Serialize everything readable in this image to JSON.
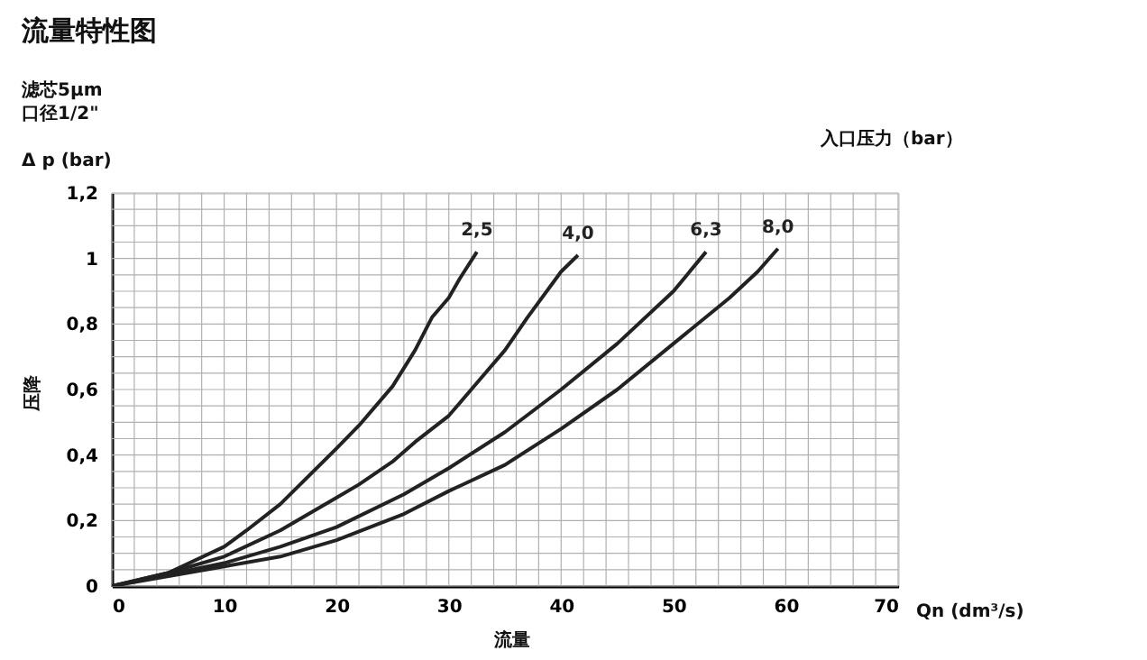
{
  "chart_data": {
    "type": "line",
    "title": "流量特性图",
    "subtitle": "滤芯5μm",
    "xlabel": "Qn (dm³/s)",
    "ylabel": "Δ p (bar)",
    "legend_title": "入口压力（bar）",
    "annotations": [
      "口径1/2\"",
      "压降",
      "流量"
    ],
    "xlim": [
      0,
      70
    ],
    "ylim": [
      0,
      1.2
    ],
    "xticks": [
      0,
      {
        "value": 2,
        "label": null
      },
      {
        "value": 4,
        "label": null
      },
      {
        "value": 6,
        "label": null
      },
      {
        "value": 8,
        "label": null
      },
      10,
      {
        "value": 12,
        "label": null
      },
      {
        "value": 14,
        "label": null
      },
      {
        "value": 16,
        "label": null
      },
      {
        "value": 18,
        "label": null
      },
      20,
      {
        "value": 22,
        "label": null
      },
      {
        "value": 24,
        "label": null
      },
      {
        "value": 26,
        "label": null
      },
      {
        "value": 28,
        "label": null
      },
      30,
      {
        "value": 32,
        "label": null
      },
      {
        "value": 34,
        "label": null
      },
      {
        "value": 36,
        "label": null
      },
      {
        "value": 38,
        "label": null
      },
      40,
      {
        "value": 42,
        "label": null
      },
      {
        "value": 44,
        "label": null
      },
      {
        "value": 46,
        "label": null
      },
      {
        "value": 48,
        "label": null
      },
      50,
      {
        "value": 52,
        "label": null
      },
      {
        "value": 54,
        "label": null
      },
      {
        "value": 56,
        "label": null
      },
      {
        "value": 58,
        "label": null
      },
      60,
      {
        "value": 62,
        "label": null
      },
      {
        "value": 64,
        "label": null
      },
      {
        "value": 66,
        "label": null
      },
      {
        "value": 68,
        "label": null
      },
      70
    ],
    "yticks": [
      0,
      {
        "value": 0.05,
        "label": null
      },
      {
        "value": 0.1,
        "label": null
      },
      {
        "value": 0.15,
        "label": null
      },
      {
        "value": 0.2,
        "label": "0,2"
      },
      {
        "value": 0.25,
        "label": null
      },
      {
        "value": 0.3,
        "label": null
      },
      {
        "value": 0.35,
        "label": null
      },
      {
        "value": 0.4,
        "label": "0,4"
      },
      {
        "value": 0.45,
        "label": null
      },
      {
        "value": 0.5,
        "label": null
      },
      {
        "value": 0.55,
        "label": null
      },
      {
        "value": 0.6,
        "label": "0,6"
      },
      {
        "value": 0.65,
        "label": null
      },
      {
        "value": 0.7,
        "label": null
      },
      {
        "value": 0.75,
        "label": null
      },
      {
        "value": 0.8,
        "label": "0,8"
      },
      {
        "value": 0.85,
        "label": null
      },
      {
        "value": 0.9,
        "label": null
      },
      {
        "value": 0.95,
        "label": null
      },
      1,
      {
        "value": 1.05,
        "label": null
      },
      {
        "value": 1.1,
        "label": null
      },
      {
        "value": 1.15,
        "label": null
      },
      {
        "value": 1.2,
        "label": "1,2"
      }
    ],
    "grid": true,
    "marker": "none",
    "line_style": "solid",
    "series": [
      {
        "name": "2,5",
        "color": "#222222",
        "x": [
          0,
          5,
          10,
          12,
          15,
          20,
          22,
          25,
          27,
          28.5,
          30,
          31,
          32.5
        ],
        "values": [
          0,
          0.04,
          0.12,
          0.17,
          0.25,
          0.42,
          0.49,
          0.61,
          0.72,
          0.82,
          0.88,
          0.94,
          1.02
        ]
      },
      {
        "name": "4,0",
        "color": "#222222",
        "x": [
          0,
          5,
          10,
          15,
          20,
          22,
          25,
          27,
          30,
          32,
          35,
          37,
          40,
          41.5
        ],
        "values": [
          0,
          0.04,
          0.09,
          0.17,
          0.27,
          0.31,
          0.38,
          0.44,
          0.52,
          0.6,
          0.72,
          0.82,
          0.96,
          1.01
        ]
      },
      {
        "name": "6,3",
        "color": "#222222",
        "x": [
          0,
          10,
          15,
          20,
          26,
          30,
          35,
          40,
          45,
          50,
          52.9
        ],
        "values": [
          0,
          0.07,
          0.12,
          0.18,
          0.28,
          0.36,
          0.47,
          0.6,
          0.74,
          0.9,
          1.02
        ]
      },
      {
        "name": "8,0",
        "color": "#222222",
        "x": [
          0,
          10,
          15,
          20,
          26,
          30,
          35,
          40,
          45,
          50,
          55,
          57.5,
          59.3
        ],
        "values": [
          0,
          0.06,
          0.09,
          0.14,
          0.22,
          0.29,
          0.37,
          0.48,
          0.6,
          0.74,
          0.88,
          0.96,
          1.03
        ]
      }
    ]
  }
}
